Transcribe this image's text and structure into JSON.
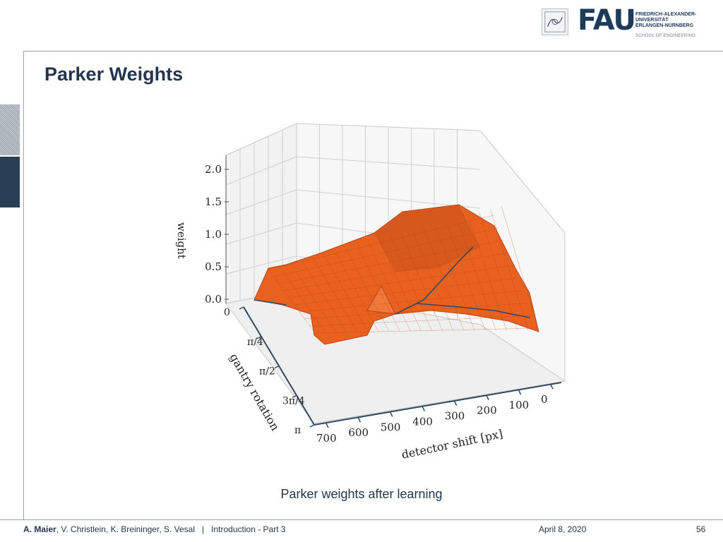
{
  "slide": {
    "title": "Parker Weights",
    "caption": "Parker weights after learning"
  },
  "logo": {
    "name": "FAU",
    "university_lines": [
      "FRIEDRICH-ALEXANDER-",
      "UNIVERSITÄT",
      "ERLANGEN-NÜRNBERG"
    ],
    "school": "SCHOOL OF ENGINEERING"
  },
  "footer": {
    "lead_author": "A. Maier",
    "coauthors": ", V. Christlein, K. Breininger, S. Vesal",
    "separator": "|",
    "lecture": "Introduction - Part 3",
    "date": "April 8, 2020",
    "page": "56"
  },
  "colors": {
    "accent": "#24364d",
    "surface": "#e8611f",
    "surface_dark": "#b9461a",
    "edge": "#2d4a66"
  },
  "chart_data": {
    "type": "surface3d",
    "title": "",
    "zlabel": "weight",
    "xlabel": "detector shift [px]",
    "ylabel": "gantry rotation",
    "z_ticks": [
      "2.0",
      "1.5",
      "1.0",
      "0.5",
      "0.0"
    ],
    "x_ticks": [
      "700",
      "600",
      "500",
      "400",
      "300",
      "200",
      "100",
      "0"
    ],
    "y_ticks": [
      "0",
      "π/4",
      "π/2",
      "3π/4",
      "π"
    ],
    "zlim": [
      0,
      2.0
    ],
    "xlim": [
      0,
      750
    ],
    "ylim": [
      0,
      3.1416
    ]
  }
}
